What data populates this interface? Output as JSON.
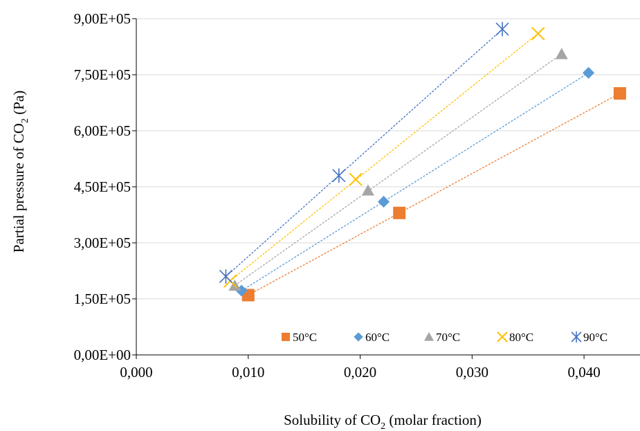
{
  "chart_data": {
    "type": "scatter",
    "xlabel_main": "Solubility of CO",
    "xlabel_sub": "2",
    "xlabel_tail": " (molar fraction)",
    "ylabel_main": "Partial pressure of CO",
    "ylabel_sub": "2",
    "ylabel_tail": " (Pa)",
    "xlim": [
      0,
      0.045
    ],
    "ylim": [
      0,
      900000
    ],
    "x_ticks": [
      0,
      0.01,
      0.02,
      0.03,
      0.04
    ],
    "x_tick_labels": [
      "0,000",
      "0,010",
      "0,020",
      "0,030",
      "0,040"
    ],
    "y_ticks": [
      0,
      150000,
      300000,
      450000,
      600000,
      750000,
      900000
    ],
    "y_tick_labels": [
      "0,00E+00",
      "1,50E+05",
      "3,00E+05",
      "4,50E+05",
      "6,00E+05",
      "7,50E+05",
      "9,00E+05"
    ],
    "grid": "horizontal",
    "trendlines": "linear, dashed",
    "legend_position": "bottom-right, inside plot",
    "series": [
      {
        "name": "50°C",
        "marker": "square",
        "color": "#ED7D31",
        "x": [
          0.01,
          0.0235,
          0.0432
        ],
        "y": [
          160000,
          380000,
          700000
        ]
      },
      {
        "name": "60°C",
        "marker": "diamond",
        "color": "#5B9BD5",
        "x": [
          0.0094,
          0.0221,
          0.0404
        ],
        "y": [
          172000,
          410000,
          755000
        ]
      },
      {
        "name": "70°C",
        "marker": "triangle",
        "color": "#A5A5A5",
        "x": [
          0.0088,
          0.0207,
          0.038
        ],
        "y": [
          185000,
          440000,
          805000
        ]
      },
      {
        "name": "80°C",
        "marker": "x",
        "color": "#FFC000",
        "x": [
          0.0084,
          0.0196,
          0.0359
        ],
        "y": [
          198000,
          470000,
          860000
        ]
      },
      {
        "name": "90°C",
        "marker": "star",
        "color": "#4472C4",
        "x": [
          0.008,
          0.0181,
          0.0327
        ],
        "y": [
          210000,
          480000,
          872000
        ]
      }
    ]
  }
}
